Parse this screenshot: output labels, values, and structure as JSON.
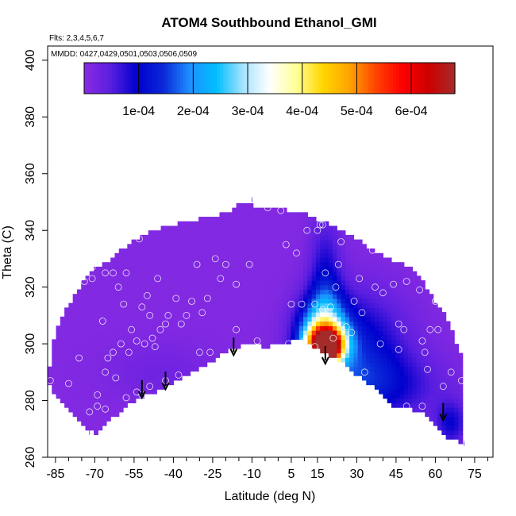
{
  "chart_data": {
    "type": "heatmap",
    "title": "ATOM4 Southbound Ethanol_GMI",
    "flights_note": "Flts: 2,3,4,5,6,7",
    "dates_note": "MMDD: 0427,0429,0501,0503,0506,0509",
    "xlabel": "Latitude (deg N)",
    "ylabel": "Theta (C)",
    "xlim": [
      -88,
      82
    ],
    "ylim": [
      260,
      405
    ],
    "x_ticks": [
      -85,
      -70,
      -55,
      -40,
      -25,
      -10,
      5,
      15,
      30,
      45,
      60,
      75
    ],
    "x_tick_labels": [
      "-85",
      "-70",
      "-55",
      "-40",
      "-25",
      "-10",
      "5",
      "15",
      "30",
      "45",
      "60",
      "75"
    ],
    "y_ticks": [
      260,
      280,
      300,
      320,
      340,
      360,
      380,
      400
    ],
    "y_tick_labels": [
      "260",
      "280",
      "300",
      "320",
      "340",
      "360",
      "380",
      "400"
    ],
    "colorbar": {
      "min": 0,
      "max": 0.00068,
      "ticks": [
        0.0001,
        0.0002,
        0.0003,
        0.0004,
        0.0005,
        0.0006
      ],
      "tick_labels": [
        "1e-04",
        "2e-04",
        "3e-04",
        "4e-04",
        "5e-04",
        "6e-04"
      ],
      "colors": [
        "#8a2be2",
        "#5a1ee0",
        "#0000cd",
        "#0a28d8",
        "#1e90ff",
        "#00bfff",
        "#a6e3ff",
        "#ffffff",
        "#ffff99",
        "#ffd700",
        "#ffa500",
        "#ff4500",
        "#ff0000",
        "#cd0000",
        "#a52a2a"
      ]
    },
    "upper_boundary": [
      [
        -88,
        287
      ],
      [
        -85,
        305
      ],
      [
        -80,
        314
      ],
      [
        -75,
        321
      ],
      [
        -70,
        327
      ],
      [
        -65,
        329
      ],
      [
        -60,
        333
      ],
      [
        -55,
        337
      ],
      [
        -50,
        339
      ],
      [
        -45,
        341
      ],
      [
        -40,
        342
      ],
      [
        -35,
        343
      ],
      [
        -30,
        344
      ],
      [
        -25,
        345
      ],
      [
        -20,
        346
      ],
      [
        -15,
        349
      ],
      [
        -10,
        349
      ],
      [
        -5,
        348
      ],
      [
        0,
        348
      ],
      [
        5,
        347
      ],
      [
        10,
        346
      ],
      [
        15,
        344
      ],
      [
        20,
        342
      ],
      [
        25,
        340
      ],
      [
        30,
        337
      ],
      [
        35,
        334
      ],
      [
        40,
        331
      ],
      [
        45,
        329
      ],
      [
        50,
        327
      ],
      [
        55,
        322
      ],
      [
        60,
        315
      ],
      [
        65,
        308
      ],
      [
        70,
        296
      ],
      [
        71,
        280
      ],
      [
        71,
        265
      ]
    ],
    "lower_boundary": [
      [
        71,
        265
      ],
      [
        65,
        267
      ],
      [
        60,
        272
      ],
      [
        55,
        276
      ],
      [
        50,
        277
      ],
      [
        45,
        277
      ],
      [
        40,
        282
      ],
      [
        35,
        286
      ],
      [
        30,
        289
      ],
      [
        25,
        293
      ],
      [
        20,
        296
      ],
      [
        15,
        298
      ],
      [
        10,
        301
      ],
      [
        5,
        301
      ],
      [
        0,
        300
      ],
      [
        -5,
        299
      ],
      [
        -10,
        300
      ],
      [
        -15,
        299
      ],
      [
        -20,
        297
      ],
      [
        -25,
        294
      ],
      [
        -30,
        291
      ],
      [
        -35,
        289
      ],
      [
        -40,
        286
      ],
      [
        -45,
        284
      ],
      [
        -50,
        282
      ],
      [
        -55,
        280
      ],
      [
        -60,
        276
      ],
      [
        -65,
        273
      ],
      [
        -70,
        268
      ],
      [
        -75,
        272
      ],
      [
        -80,
        276
      ],
      [
        -85,
        282
      ],
      [
        -88,
        287
      ]
    ],
    "hotspots": [
      {
        "lat": 19,
        "theta": 298,
        "value": 0.00066,
        "radius_lat": 3,
        "radius_theta": 4
      },
      {
        "lat": 18,
        "theta": 300,
        "value": 0.00052,
        "radius_lat": 7,
        "radius_theta": 6
      },
      {
        "lat": 17,
        "theta": 304,
        "value": 0.00025,
        "radius_lat": 9,
        "radius_theta": 12
      },
      {
        "lat": 30,
        "theta": 300,
        "value": 0.0001,
        "radius_lat": 18,
        "radius_theta": 18
      },
      {
        "lat": 35,
        "theta": 285,
        "value": 9e-05,
        "radius_lat": 25,
        "radius_theta": 12
      },
      {
        "lat": 18,
        "theta": 318,
        "value": 9e-05,
        "radius_lat": 6,
        "radius_theta": 25
      },
      {
        "lat": -45,
        "theta": 290,
        "value": 2e-05,
        "radius_lat": 20,
        "radius_theta": 10
      },
      {
        "lat": 66,
        "theta": 272,
        "value": 8e-05,
        "radius_lat": 6,
        "radius_theta": 8
      }
    ],
    "background_value": 8e-06,
    "sample_points": [
      [
        -87,
        287
      ],
      [
        -80,
        286
      ],
      [
        -72,
        276
      ],
      [
        -69,
        278
      ],
      [
        -66,
        277
      ],
      [
        -69,
        282
      ],
      [
        -66,
        290
      ],
      [
        -62,
        288
      ],
      [
        -58,
        281
      ],
      [
        -54,
        283
      ],
      [
        -52,
        282
      ],
      [
        -49,
        285
      ],
      [
        -43,
        287
      ],
      [
        -38,
        289
      ],
      [
        -80,
        321
      ],
      [
        -74,
        322
      ],
      [
        -73,
        331
      ],
      [
        -71,
        327
      ],
      [
        -68,
        330
      ],
      [
        -71,
        323
      ],
      [
        -66,
        325
      ],
      [
        -63,
        325
      ],
      [
        -61,
        320
      ],
      [
        -58,
        325
      ],
      [
        -53,
        337
      ],
      [
        -50,
        317
      ],
      [
        -52,
        313
      ],
      [
        -49,
        310
      ],
      [
        -46,
        323
      ],
      [
        -43,
        307
      ],
      [
        -39,
        316
      ],
      [
        -35,
        310
      ],
      [
        -33,
        315
      ],
      [
        -31,
        328
      ],
      [
        -29,
        311
      ],
      [
        -24,
        330
      ],
      [
        -22,
        323
      ],
      [
        -20,
        328
      ],
      [
        -16,
        321
      ],
      [
        -11,
        328
      ],
      [
        -8,
        301
      ],
      [
        -4,
        348
      ],
      [
        1,
        347
      ],
      [
        3,
        335
      ],
      [
        5,
        314
      ],
      [
        7,
        332
      ],
      [
        9,
        314
      ],
      [
        11,
        340
      ],
      [
        13,
        346
      ],
      [
        15,
        340
      ],
      [
        16,
        342
      ],
      [
        17,
        342
      ],
      [
        14,
        314
      ],
      [
        17,
        312
      ],
      [
        18,
        325
      ],
      [
        20,
        313
      ],
      [
        21,
        302
      ],
      [
        23,
        328
      ],
      [
        24,
        336
      ],
      [
        26,
        306
      ],
      [
        28,
        304
      ],
      [
        29,
        315
      ],
      [
        31,
        323
      ],
      [
        32,
        311
      ],
      [
        33,
        290
      ],
      [
        36,
        333
      ],
      [
        37,
        320
      ],
      [
        39,
        300
      ],
      [
        40,
        318
      ],
      [
        42,
        333
      ],
      [
        44,
        321
      ],
      [
        46,
        307
      ],
      [
        48,
        305
      ],
      [
        49,
        322
      ],
      [
        52,
        333
      ],
      [
        54,
        319
      ],
      [
        55,
        301
      ],
      [
        56,
        297
      ],
      [
        57,
        291
      ],
      [
        59,
        331
      ],
      [
        60,
        315
      ],
      [
        61,
        305
      ],
      [
        63,
        285
      ],
      [
        70,
        287
      ],
      [
        -65,
        295
      ],
      [
        -60,
        300
      ],
      [
        -56,
        305
      ],
      [
        -54,
        301
      ],
      [
        -51,
        300
      ],
      [
        -48,
        302
      ],
      [
        -45,
        305
      ],
      [
        -30,
        297
      ],
      [
        -26,
        297
      ],
      [
        -12,
        297
      ],
      [
        -20,
        286
      ],
      [
        -62,
        268
      ],
      [
        -57,
        297
      ],
      [
        -42,
        310
      ],
      [
        10,
        301
      ],
      [
        4,
        300
      ],
      [
        14,
        299
      ],
      [
        -76,
        295
      ],
      [
        -67,
        308
      ],
      [
        -63,
        297
      ],
      [
        -59,
        314
      ],
      [
        -47,
        299
      ],
      [
        -37,
        307
      ],
      [
        -27,
        316
      ],
      [
        -16,
        305
      ],
      [
        22,
        320
      ],
      [
        30,
        285
      ],
      [
        46,
        298
      ],
      [
        49,
        278
      ],
      [
        55,
        278
      ],
      [
        58,
        305
      ],
      [
        66,
        290
      ]
    ],
    "arrows": [
      {
        "lat": -52,
        "theta": 281
      },
      {
        "lat": -43,
        "theta": 284
      },
      {
        "lat": -17,
        "theta": 296
      },
      {
        "lat": 18,
        "theta": 293
      },
      {
        "lat": 63,
        "theta": 273
      }
    ],
    "edge_marks": [
      {
        "lat": -10,
        "theta": 350,
        "label": "i"
      },
      {
        "lat": 71,
        "theta": 264,
        "label": "i"
      },
      {
        "lat": -72,
        "theta": 268,
        "label": "i"
      }
    ]
  }
}
